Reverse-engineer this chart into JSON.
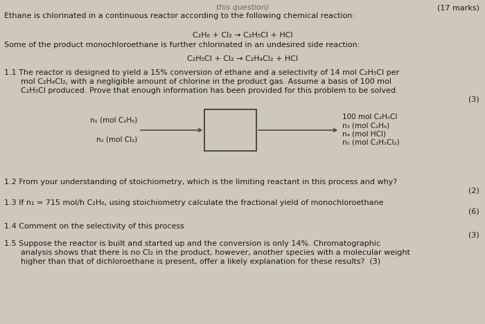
{
  "bg_color": "#cec8ba",
  "text_color": "#1a1a1a",
  "title_right": "(17 marks)",
  "header_partial": "this question)",
  "line0": "Ethane is chlorinated in a continuous reactor according to the following chemical reaction:",
  "rxn1": "C₂H₆ + Cl₂ → C₂H₅Cl + HCl",
  "line1": "Some of the product monochloroethane is further chlorinated in an undesired side reaction:",
  "rxn2": "C₂H₅Cl + Cl₂ → C₂H₄Cl₂ + HCl",
  "q11_text": "1.1 The reactor is designed to yield a 15% conversion of ethane and a selectivity of 14 mol C₂H₅Cl per",
  "q11_text2": "mol C₂H₄Cl₂, with a negligible amount of chlorine in the product gas. Assume a basis of 100 mol",
  "q11_text3": "C₂H₅Cl produced. Prove that enough information has been provided for this problem to be solved.",
  "q11_marks": "(3)",
  "inlet_line1": "n₁ (mol C₂H₆)",
  "inlet_line2": "n₂ (mol Cl₂)",
  "outlet_line1": "100 mol C₂H₅Cl",
  "outlet_line2": "n₃ (mol C₂H₆)",
  "outlet_line3": "n₄ (mol HCl)",
  "outlet_line4": "n₅ (mol C₂H₅Cl₂)",
  "q12": "1.2 From your understanding of stoichiometry, which is the limiting reactant in this process and why?",
  "q12_marks": "(2)",
  "q13": "1.3 If n₁ = 715 mol/h C₂H₆, using stoichiometry calculate the fractional yield of monochloroethane",
  "q13_marks": "(6)",
  "q14": "1.4 Comment on the selectivity of this process",
  "q14_marks": "(3)",
  "q15_line1": "1.5 Suppose the reactor is built and started up and the conversion is only 14%. Chromatographic",
  "q15_line2": "analysis shows that there is no Cl₂ in the product, however, another species with a molecular weight",
  "q15_line3": "higher than that of dichloroethane is present, offer a likely explanation for these results?  (3)"
}
